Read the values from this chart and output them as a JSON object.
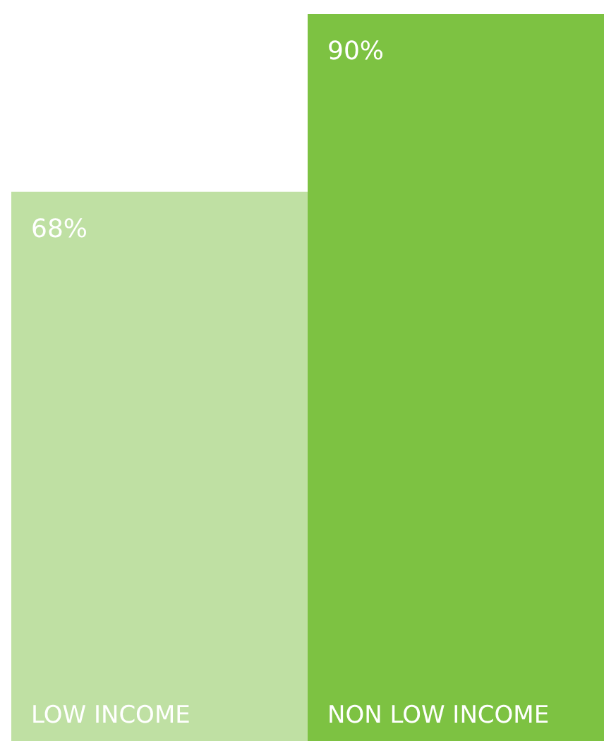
{
  "chart_data": {
    "type": "bar",
    "categories": [
      "LOW INCOME",
      "NON LOW INCOME"
    ],
    "values": [
      68,
      90
    ],
    "colors": [
      "#bfe0a3",
      "#7dc242"
    ],
    "value_labels": [
      "68%",
      "90%"
    ],
    "tick_labels": false
  }
}
